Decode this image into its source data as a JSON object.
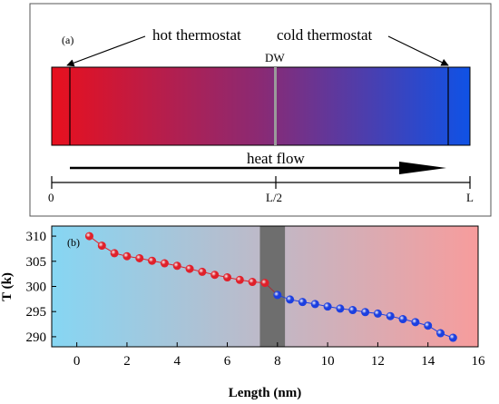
{
  "panel_a": {
    "label": "(a)",
    "hot_label": "hot thermostat",
    "cold_label": "cold thermostat",
    "dw_label": "DW",
    "flow_label": "heat flow",
    "scale_ticks": [
      "0",
      "L/2",
      "L"
    ],
    "colors": {
      "hot": "#e8101e",
      "mid": "#8a2a74",
      "cold": "#0f52e6"
    }
  },
  "chart_data": {
    "type": "scatter",
    "panel_label": "(b)",
    "xlabel": "Length (nm)",
    "ylabel": "T (k)",
    "xlim": [
      -1,
      16
    ],
    "ylim": [
      288,
      312
    ],
    "xticks": [
      0,
      2,
      4,
      6,
      8,
      10,
      12,
      14,
      16
    ],
    "yticks": [
      290,
      295,
      300,
      305,
      310
    ],
    "domain_wall_band": [
      7.3,
      8.3
    ],
    "background_gradient": [
      "#86d6f3",
      "#f79c9c"
    ],
    "series": [
      {
        "color": "#e0202a",
        "x": [
          0.5,
          1.0,
          1.5,
          2.0,
          2.5,
          3.0,
          3.5,
          4.0,
          4.5,
          5.0,
          5.5,
          6.0,
          6.5,
          7.0,
          7.5
        ],
        "y": [
          310.0,
          308.1,
          306.6,
          306.0,
          305.6,
          305.1,
          304.6,
          304.1,
          303.5,
          302.9,
          302.3,
          301.8,
          301.3,
          300.9,
          300.7
        ]
      },
      {
        "color": "#1c3fe0",
        "x": [
          8.0,
          8.5,
          9.0,
          9.5,
          10.0,
          10.5,
          11.0,
          11.5,
          12.0,
          12.5,
          13.0,
          13.5,
          14.0,
          14.5,
          15.0
        ],
        "y": [
          298.3,
          297.4,
          296.9,
          296.5,
          296.0,
          295.6,
          295.3,
          294.9,
          294.6,
          294.1,
          293.5,
          292.9,
          292.2,
          290.7,
          289.8
        ]
      }
    ]
  }
}
